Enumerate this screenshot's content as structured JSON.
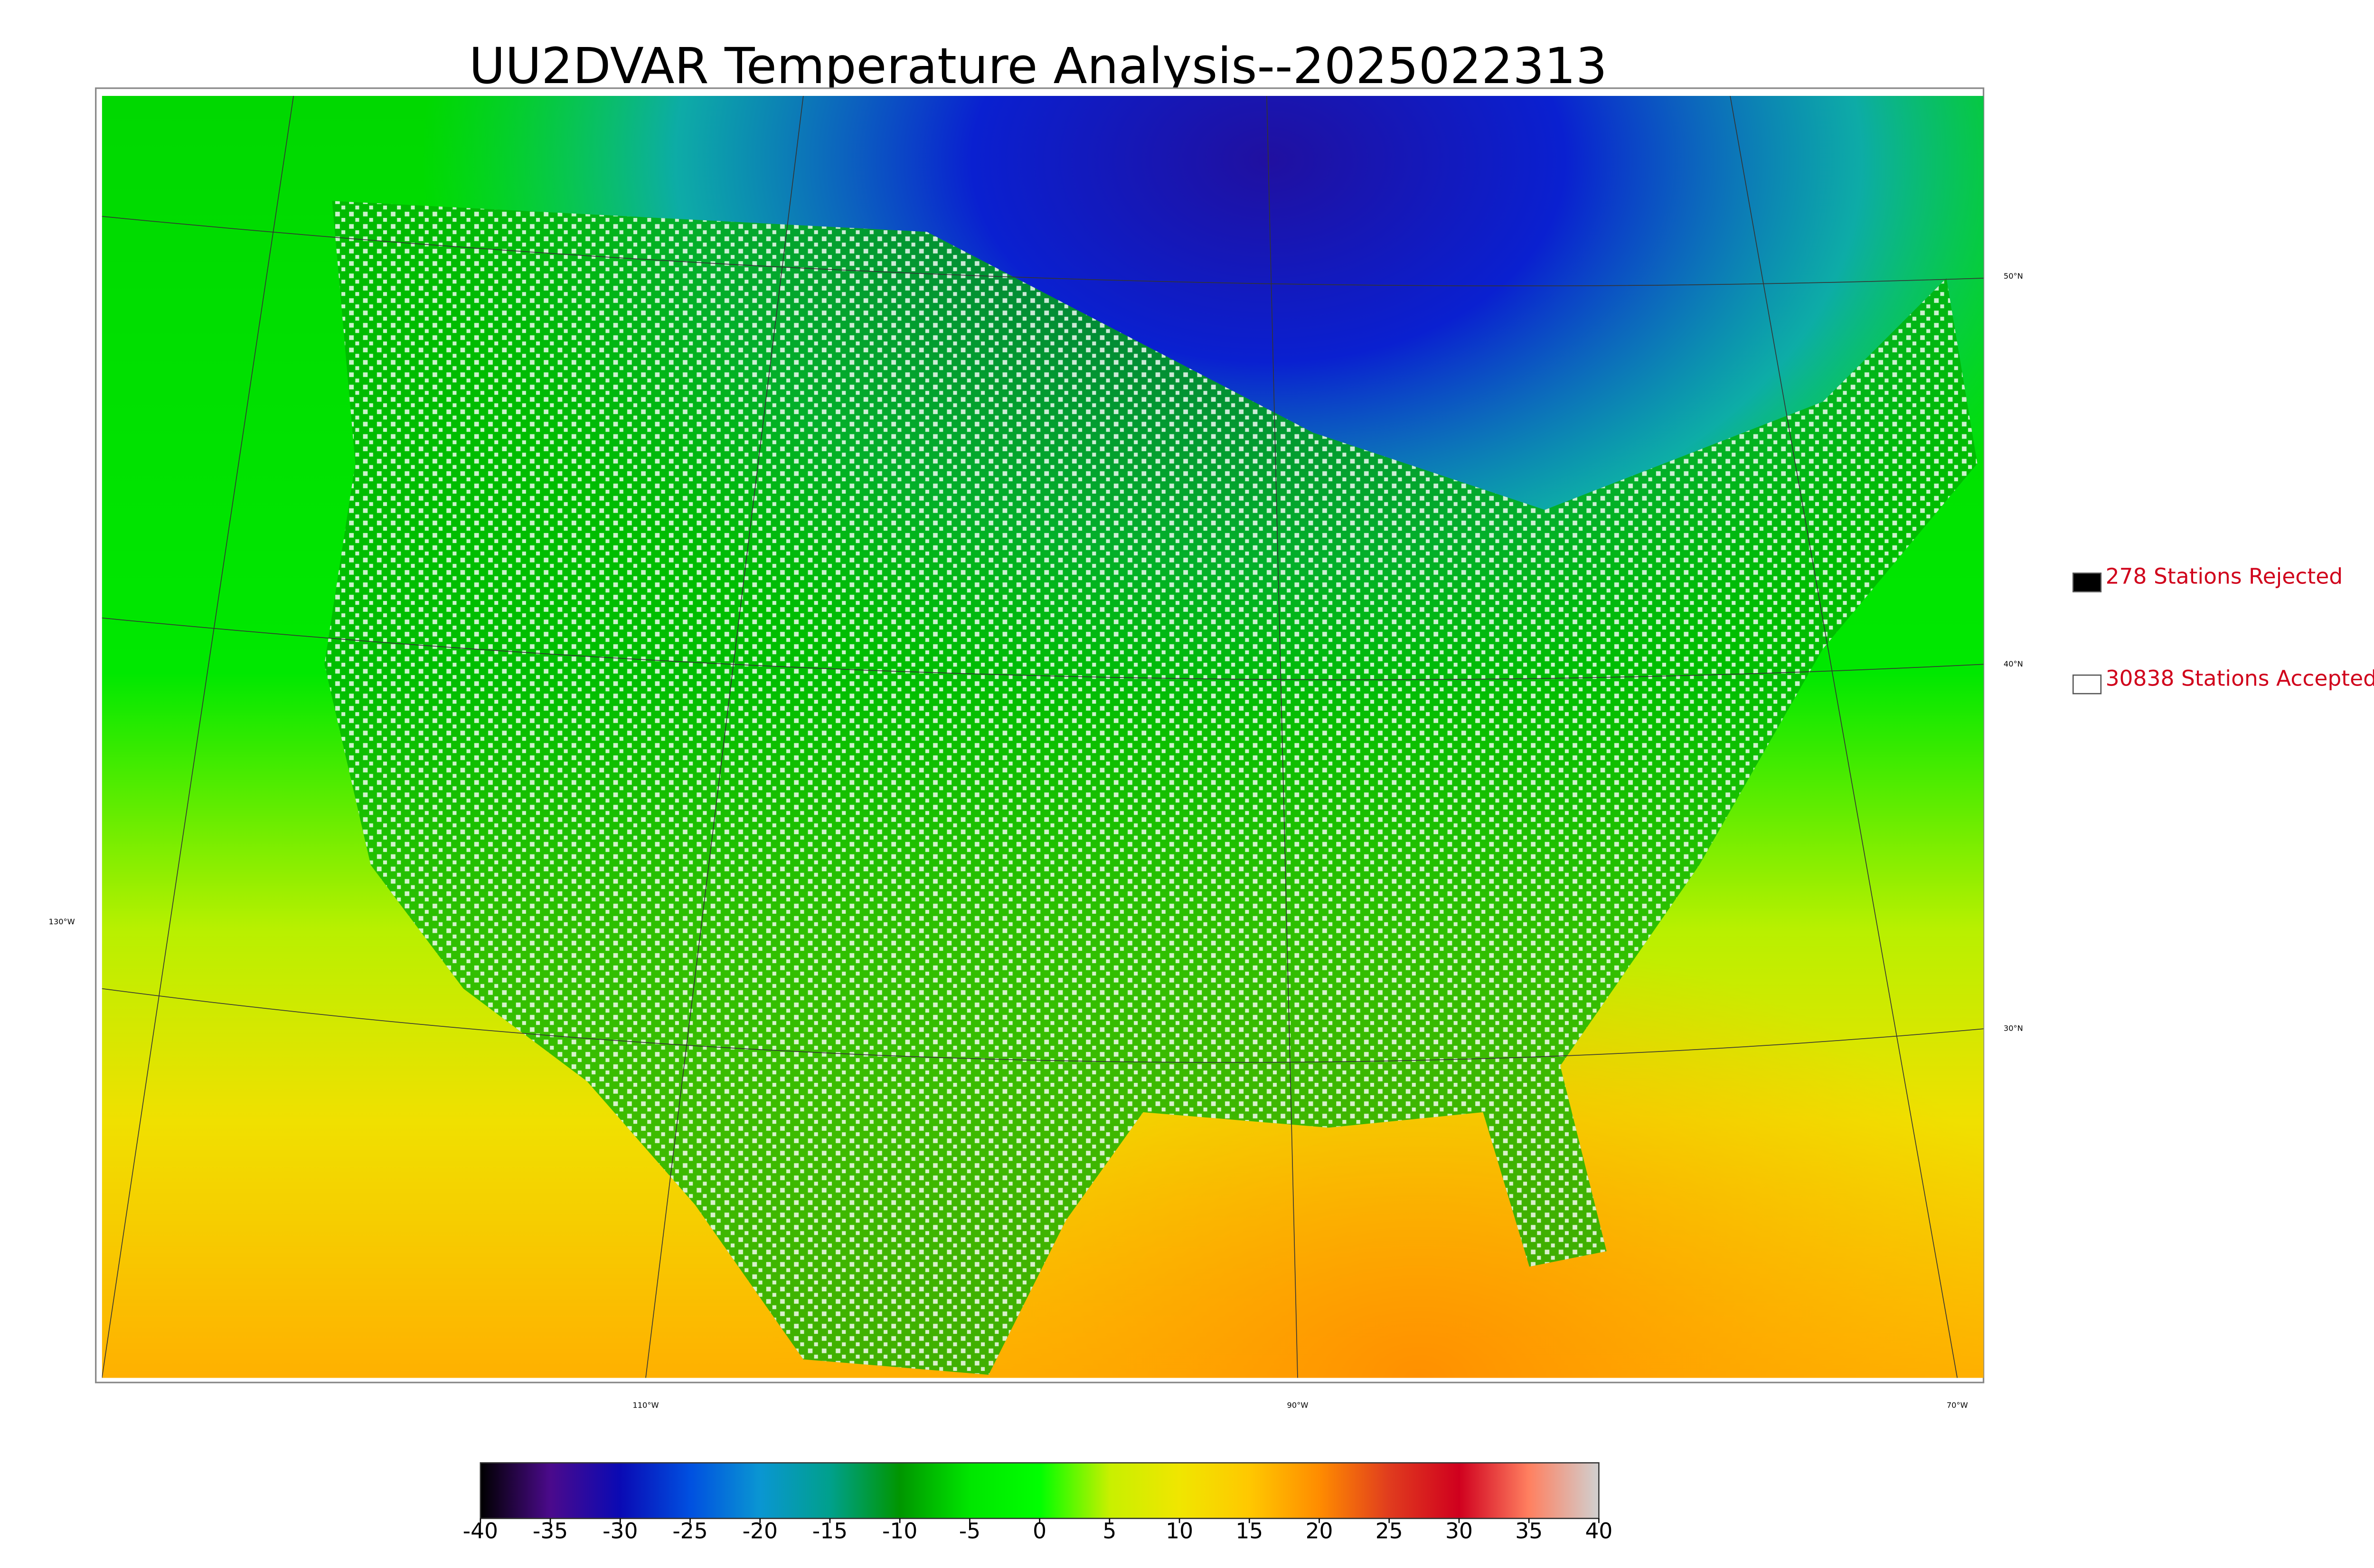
{
  "title": "UU2DVAR Temperature Analysis--2025022313",
  "legend": [
    {
      "label": "278 Stations Rejected",
      "color": "#000000"
    },
    {
      "label": "30838 Stations Accepted",
      "color": "#ffffff"
    }
  ],
  "latitude_labels": [
    "50°N",
    "40°N",
    "30°N"
  ],
  "longitude_labels": [
    "130°W",
    "110°W",
    "90°W",
    "70°W"
  ],
  "colorbar": {
    "lim": [
      -40,
      40
    ],
    "ticks": [
      -40,
      -35,
      -30,
      -25,
      -20,
      -15,
      -10,
      -5,
      0,
      5,
      10,
      15,
      20,
      25,
      30,
      35,
      40
    ],
    "colors": [
      "#000000",
      "#4b0a8c",
      "#0a0ab4",
      "#0050e0",
      "#0a96d2",
      "#00a08c",
      "#009600",
      "#00e600",
      "#00ff00",
      "#c8f000",
      "#f0e600",
      "#ffc800",
      "#ff8c00",
      "#e03c1e",
      "#d0001e",
      "#ff8060",
      "#d0d0d0"
    ]
  }
}
